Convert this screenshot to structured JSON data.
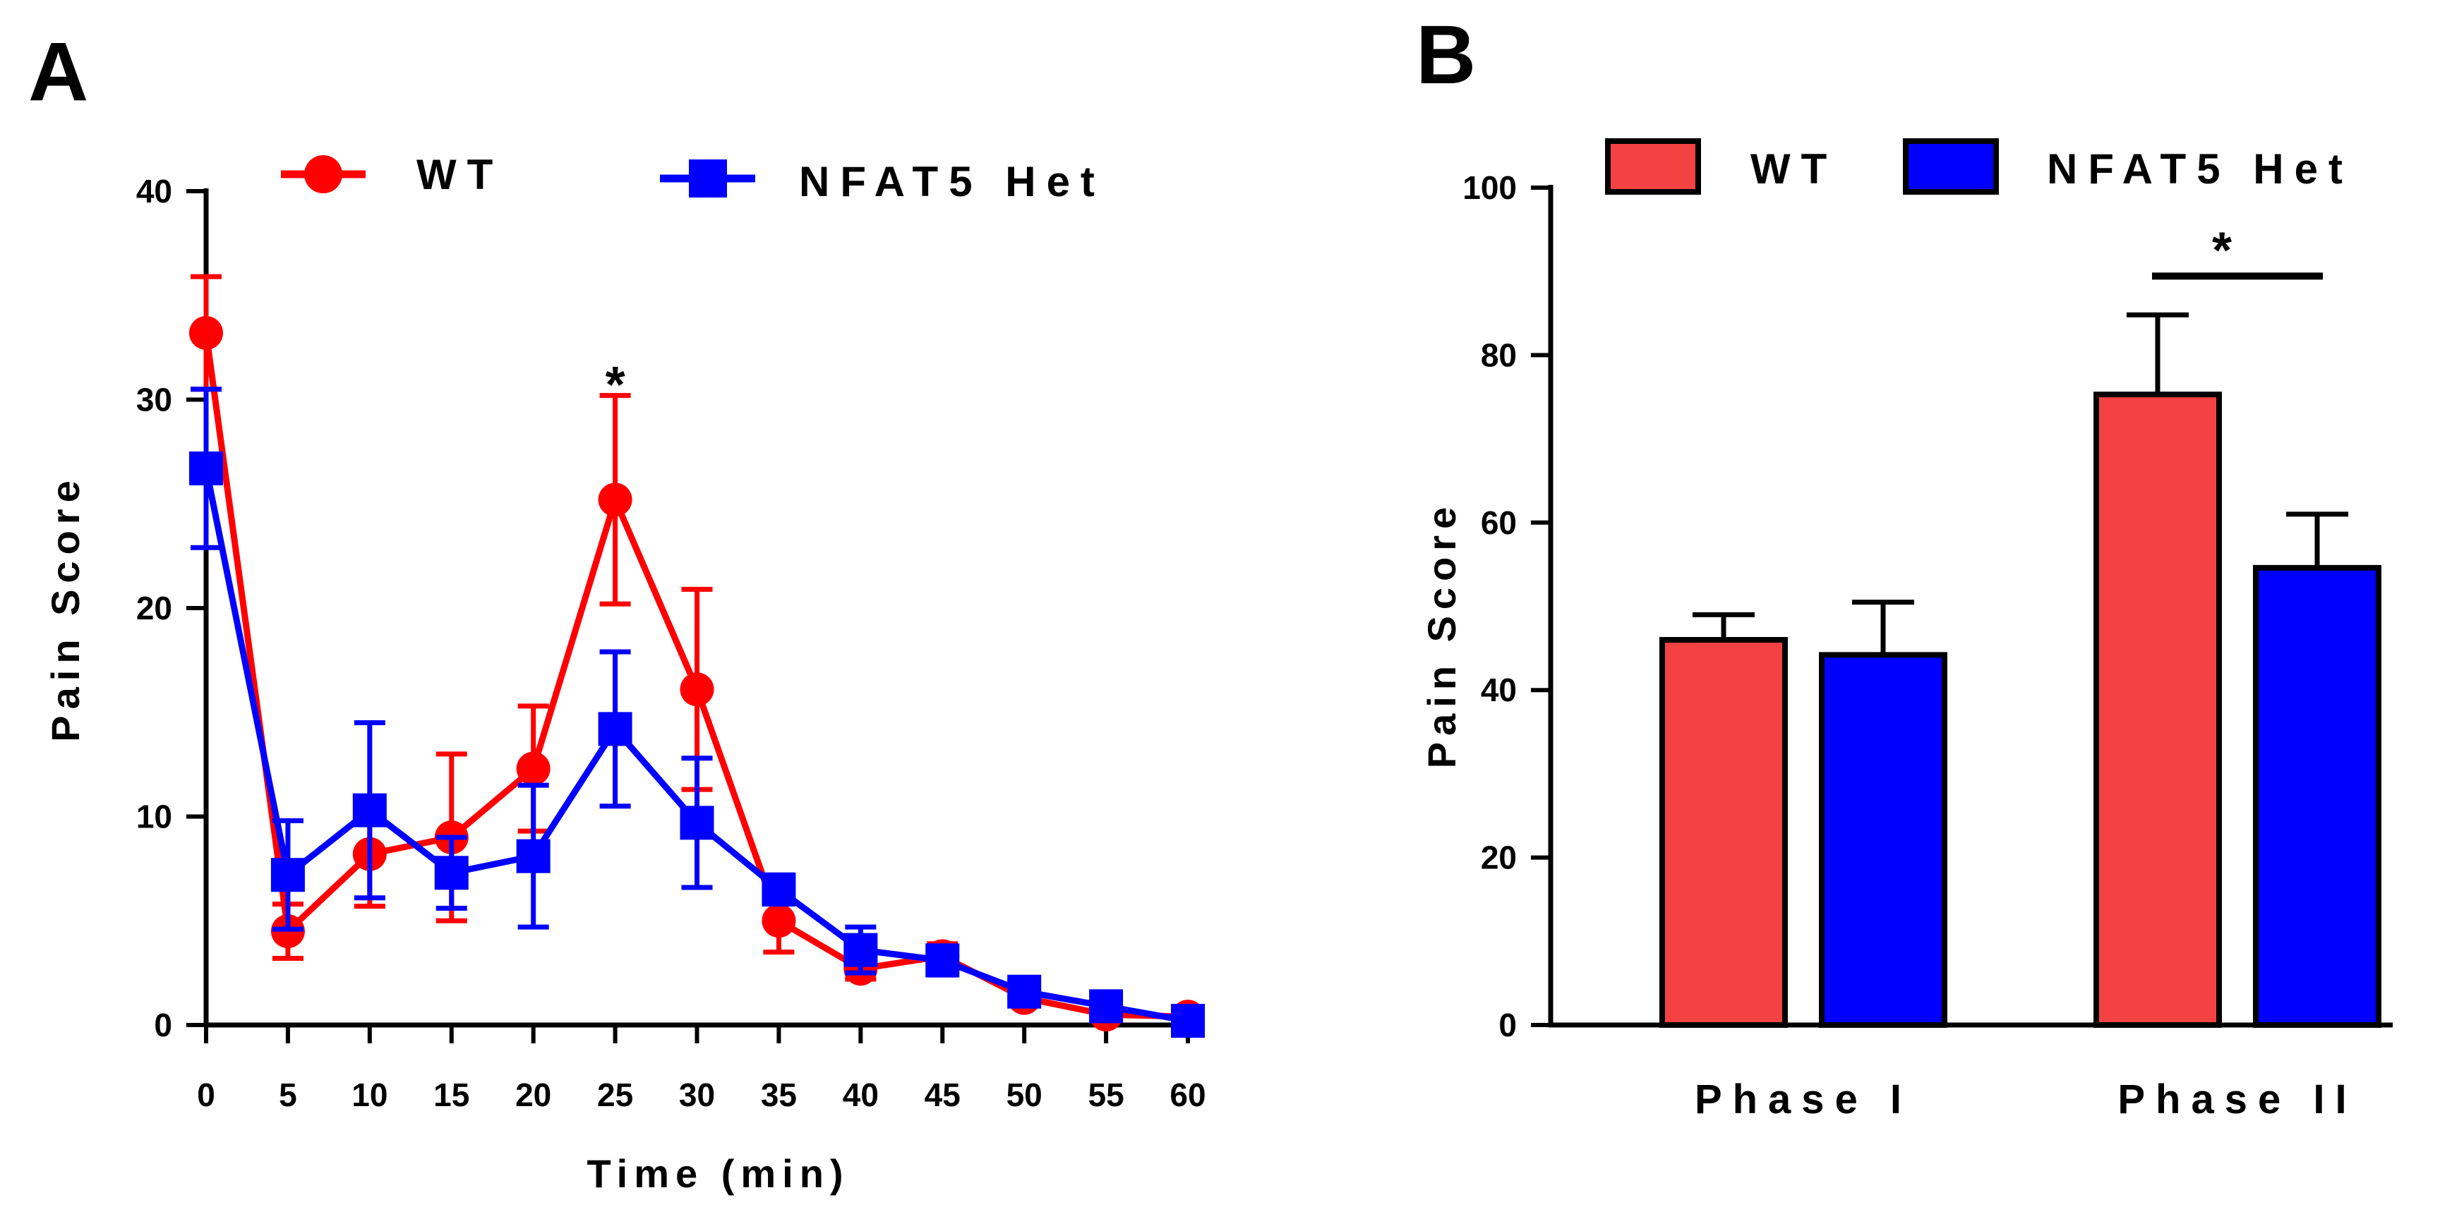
{
  "colors": {
    "wt": "#ff0000",
    "het": "#0000ff",
    "wt_bar": "#f44242",
    "het_bar": "#0000ff",
    "axis": "#000000"
  },
  "chart_data": [
    {
      "panel": "A",
      "type": "line",
      "title": "",
      "xlabel": "Time (min)",
      "ylabel": "Pain Score",
      "xlim": [
        0,
        60
      ],
      "ylim": [
        0,
        40
      ],
      "x_ticks": [
        "0",
        "5",
        "10",
        "15",
        "20",
        "25",
        "30",
        "35",
        "40",
        "45",
        "50",
        "55",
        "60"
      ],
      "y_ticks": [
        "0",
        "10",
        "20",
        "30",
        "40"
      ],
      "x": [
        0,
        5,
        10,
        15,
        20,
        25,
        30,
        35,
        40,
        45,
        50,
        55,
        60
      ],
      "series": [
        {
          "name": "WT",
          "marker": "circle",
          "color": "#ff0000",
          "values": [
            33.2,
            4.5,
            8.2,
            9.0,
            12.3,
            25.2,
            16.1,
            5.0,
            2.7,
            3.3,
            1.3,
            0.5,
            0.4
          ],
          "errors": [
            2.7,
            1.3,
            2.5,
            4.0,
            3.0,
            5.0,
            4.8,
            1.5,
            0.5,
            0.6,
            0.3,
            0.2,
            0.2
          ]
        },
        {
          "name": "NFAT5 Het",
          "marker": "square",
          "color": "#0000ff",
          "values": [
            26.7,
            7.2,
            10.3,
            7.3,
            8.1,
            14.2,
            9.7,
            6.5,
            3.6,
            3.1,
            1.6,
            0.9,
            0.2
          ],
          "errors": [
            3.8,
            2.6,
            4.2,
            1.7,
            3.4,
            3.7,
            3.1,
            0.7,
            1.1,
            0.7,
            0.6,
            0.5,
            0.1
          ]
        }
      ],
      "annotations": [
        {
          "text": "*",
          "x": 25
        }
      ],
      "legend": "top"
    },
    {
      "panel": "B",
      "type": "bar",
      "title": "",
      "xlabel": "",
      "ylabel": "Pain Score",
      "ylim": [
        0,
        100
      ],
      "y_ticks": [
        "0",
        "20",
        "40",
        "60",
        "80",
        "100"
      ],
      "categories": [
        "Phase I",
        "Phase II"
      ],
      "series": [
        {
          "name": "WT",
          "color": "#f44242",
          "values": [
            46.0,
            75.3
          ],
          "errors": [
            3.0,
            9.5
          ]
        },
        {
          "name": "NFAT5 Het",
          "color": "#0000ff",
          "values": [
            44.2,
            54.6
          ],
          "errors": [
            6.3,
            6.4
          ]
        }
      ],
      "annotations": [
        {
          "text": "*",
          "between": "Phase II"
        }
      ],
      "legend": "top"
    }
  ]
}
